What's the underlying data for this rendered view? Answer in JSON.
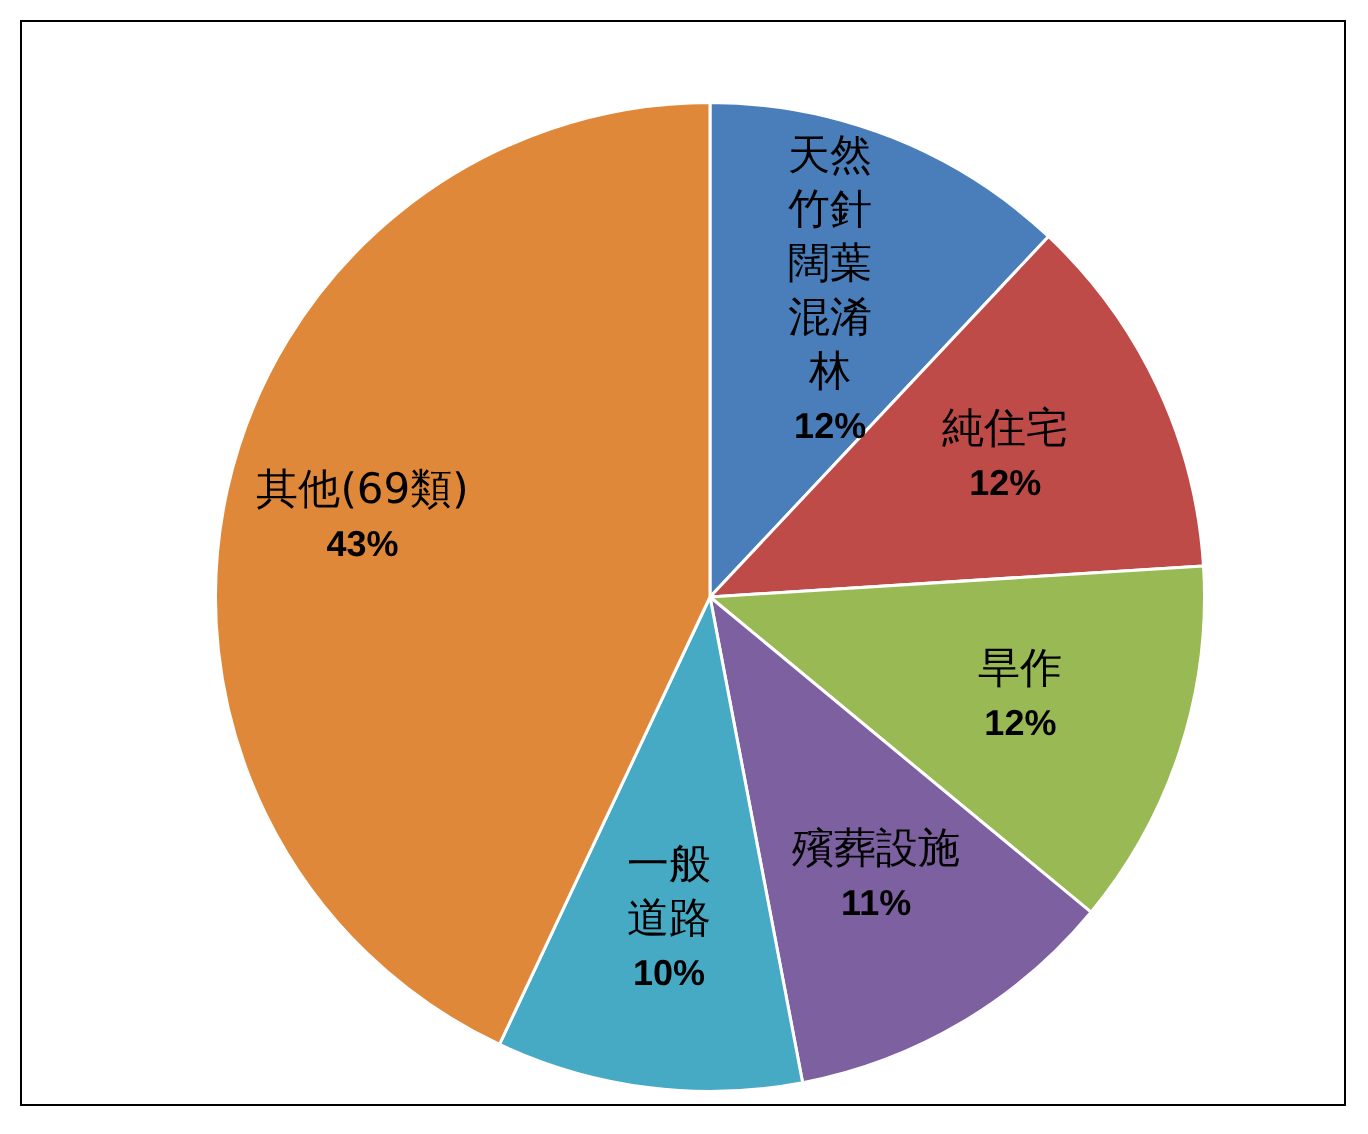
{
  "chart_data": {
    "type": "pie",
    "categories": [
      "天然竹針闊葉混淆林",
      "純住宅",
      "旱作",
      "殯葬設施",
      "一般道路",
      "其他(69類)"
    ],
    "values": [
      12,
      12,
      12,
      11,
      10,
      43
    ],
    "value_labels": [
      "12%",
      "12%",
      "12%",
      "11%",
      "10%",
      "43%"
    ],
    "colors": [
      "#4a7ebb",
      "#be4b48",
      "#98b954",
      "#7d60a0",
      "#46aac5",
      "#e0883a"
    ],
    "legend": false
  }
}
